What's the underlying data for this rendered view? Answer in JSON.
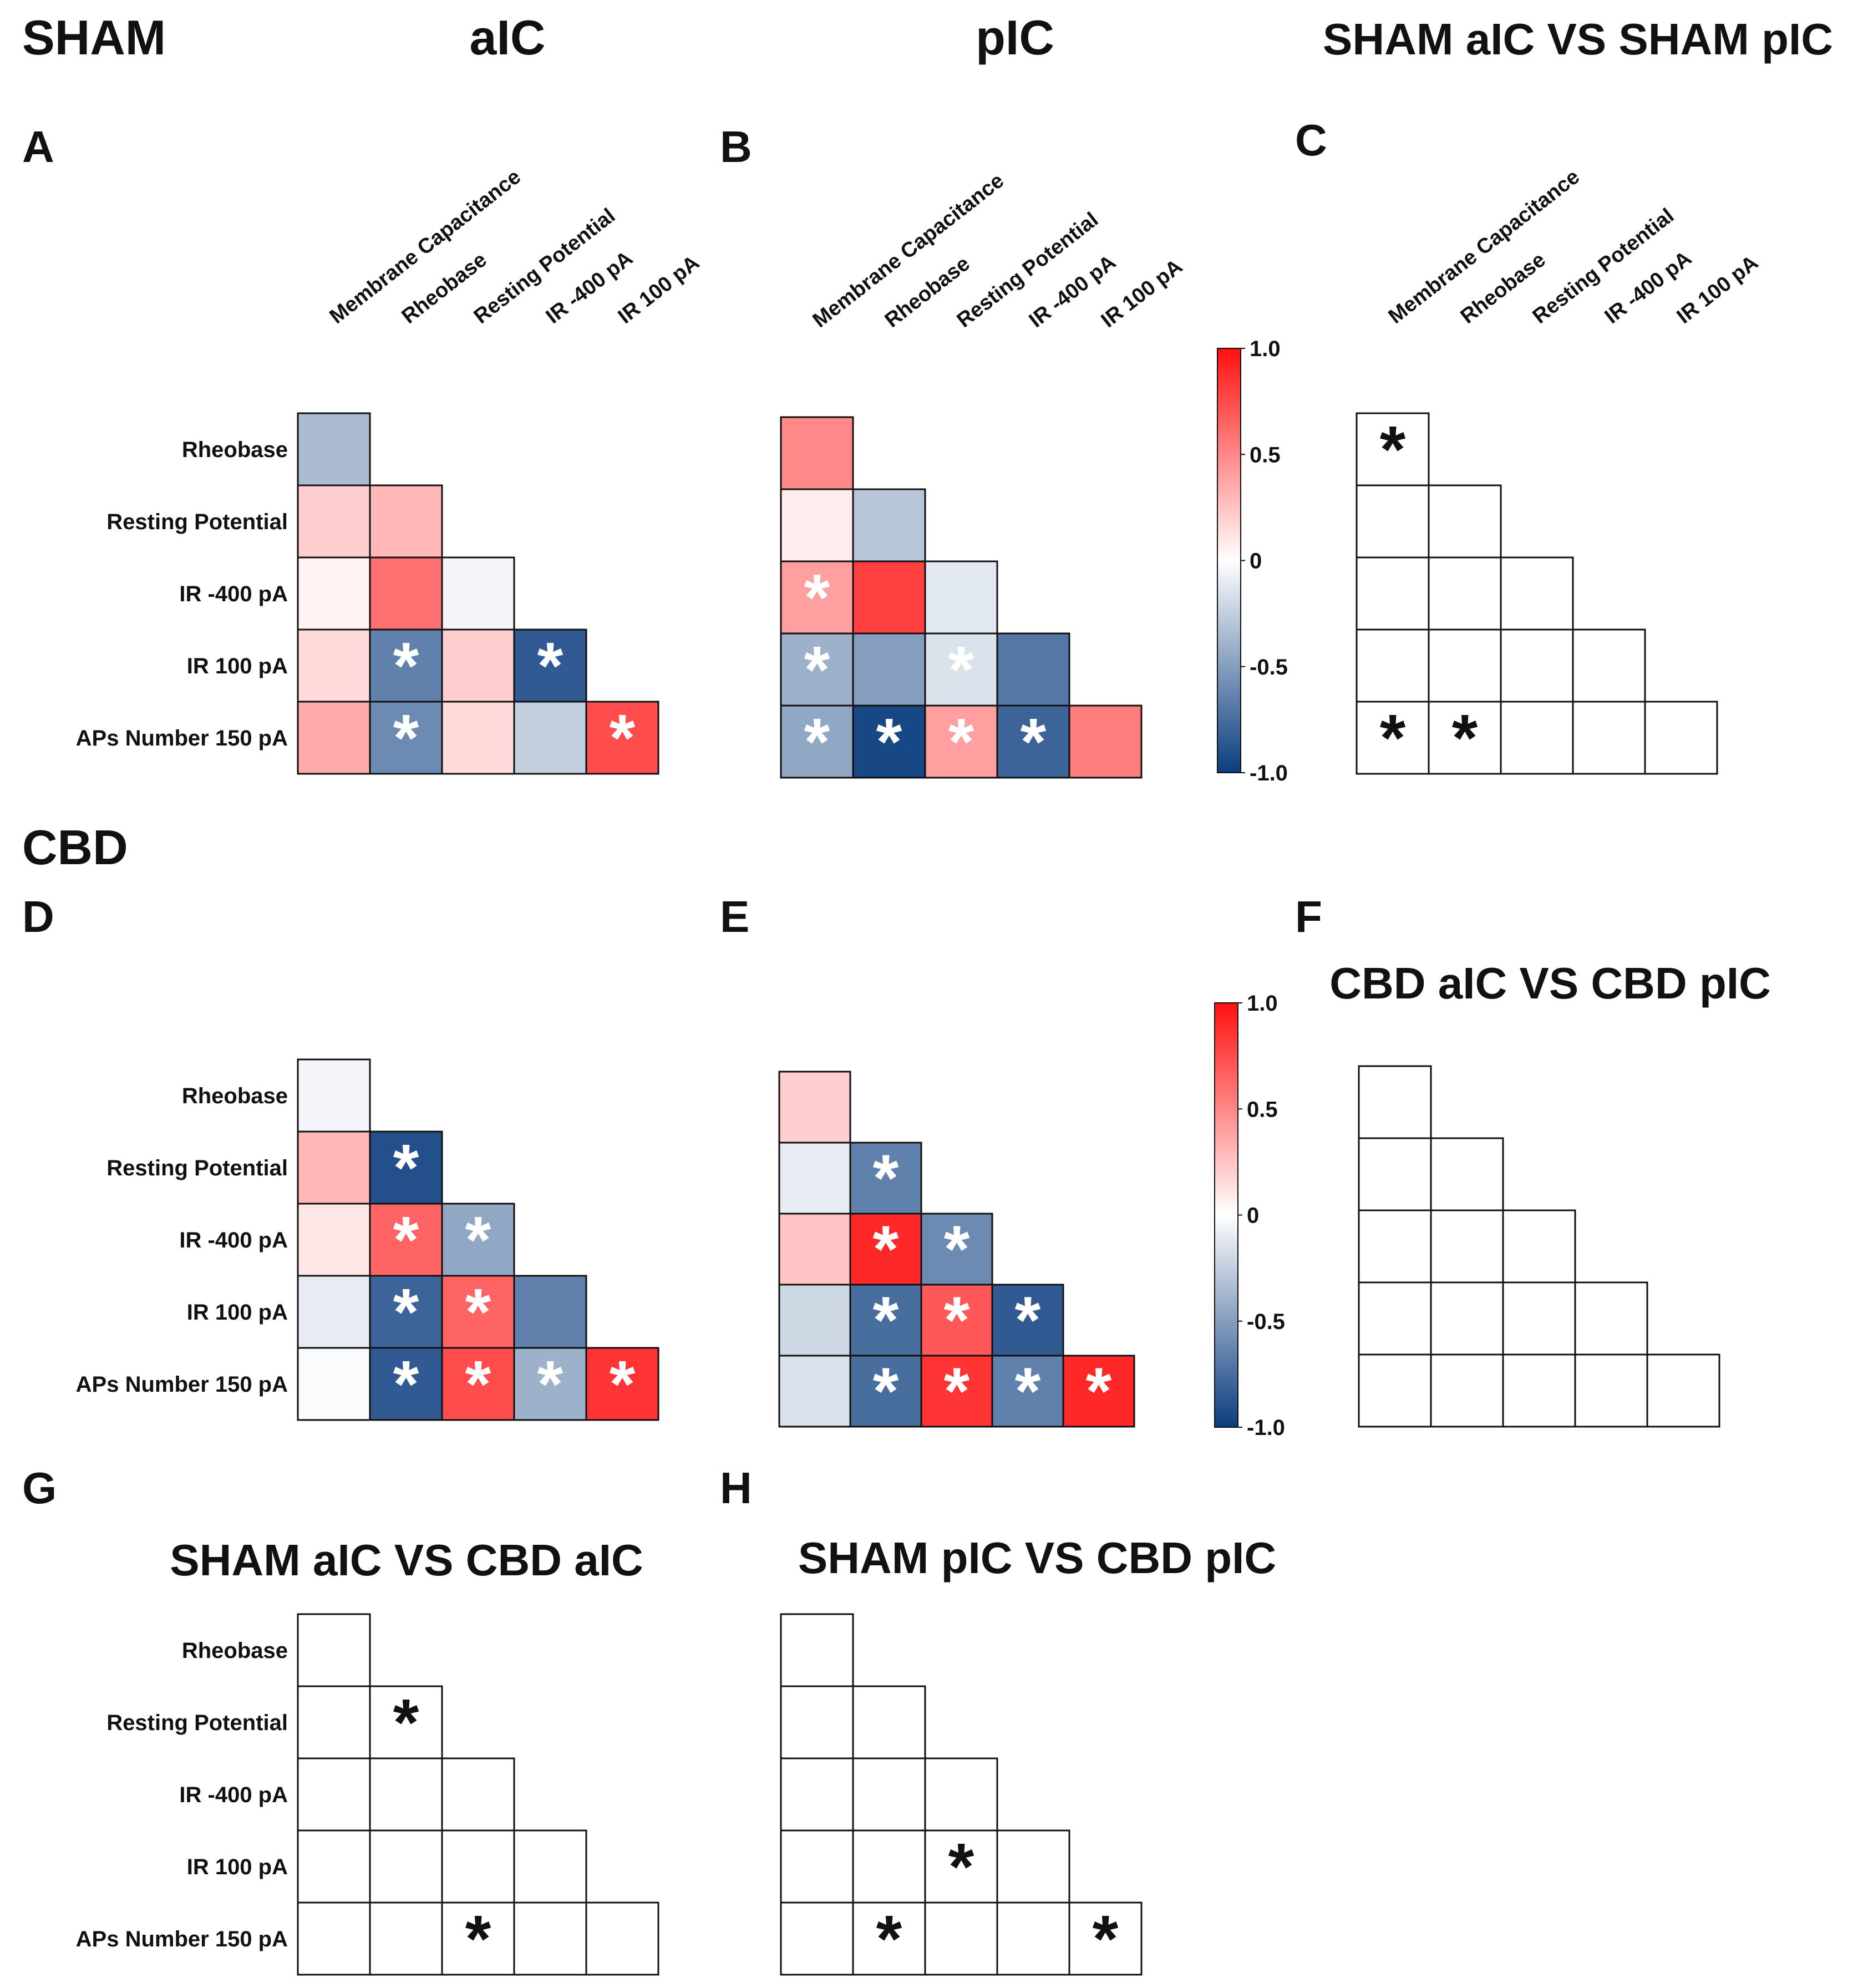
{
  "titles": {
    "sham": "SHAM",
    "aic": "aIC",
    "pic": "pIC",
    "sham_compare": "SHAM aIC VS SHAM pIC",
    "cbd": "CBD",
    "cbd_compare": "CBD aIC VS CBD pIC",
    "g_compare": "SHAM aIC VS CBD aIC",
    "h_compare": "SHAM pIC VS CBD pIC"
  },
  "colors": {
    "negative": "#0b3d7e",
    "zero": "#ffffff",
    "positive": "#ff1010",
    "white_star": "#ffffff",
    "black_star": "#111111"
  },
  "chart_data": [
    {
      "type": "heatmap",
      "panel": "A",
      "x_labels": [
        "Membrane Capacitance",
        "Rheobase",
        "Resting Potential",
        "IR -400 pA",
        "IR 100 pA"
      ],
      "y_labels": [
        "Rheobase",
        "Resting Potential",
        "IR -400 pA",
        "IR 100 pA",
        "APs Number 150 pA"
      ],
      "values": [
        [
          -0.35
        ],
        [
          0.2,
          0.3
        ],
        [
          0.05,
          0.6,
          -0.05
        ],
        [
          0.15,
          -0.65,
          0.2,
          -0.85
        ],
        [
          0.35,
          -0.6,
          0.15,
          -0.25,
          0.75
        ]
      ],
      "significant": [
        [
          false
        ],
        [
          false,
          false
        ],
        [
          false,
          false,
          false
        ],
        [
          false,
          true,
          false,
          true
        ],
        [
          false,
          true,
          false,
          false,
          true
        ]
      ]
    },
    {
      "type": "heatmap",
      "panel": "B",
      "x_labels": [
        "Membrane Capacitance",
        "Rheobase",
        "Resting Potential",
        "IR -400 pA",
        "IR 100 pA"
      ],
      "y_labels": [
        "Rheobase",
        "Resting Potential",
        "IR -400 pA",
        "IR 100 pA",
        "APs Number 150 pA"
      ],
      "values": [
        [
          0.5
        ],
        [
          0.08,
          -0.3
        ],
        [
          0.4,
          0.8,
          -0.12
        ],
        [
          -0.4,
          -0.5,
          -0.15,
          -0.7
        ],
        [
          -0.45,
          -0.95,
          0.4,
          -0.8,
          0.55
        ]
      ],
      "significant": [
        [
          false
        ],
        [
          false,
          false
        ],
        [
          true,
          false,
          false
        ],
        [
          true,
          false,
          true,
          false
        ],
        [
          true,
          true,
          true,
          true,
          false
        ]
      ]
    },
    {
      "type": "heatmap",
      "panel": "C",
      "x_labels": [
        "Membrane Capacitance",
        "Rheobase",
        "Resting Potential",
        "IR -400 pA",
        "IR 100 pA"
      ],
      "values": [],
      "significant": [
        [
          true
        ],
        [
          false,
          false
        ],
        [
          false,
          false,
          false
        ],
        [
          false,
          false,
          false,
          false
        ],
        [
          true,
          true,
          false,
          false,
          false
        ]
      ]
    },
    {
      "type": "heatmap",
      "panel": "D",
      "y_labels": [
        "Rheobase",
        "Resting Potential",
        "IR -400 pA",
        "IR 100 pA",
        "APs Number 150 pA"
      ],
      "values": [
        [
          -0.05
        ],
        [
          0.3,
          -0.9
        ],
        [
          0.1,
          0.65,
          -0.45
        ],
        [
          -0.1,
          -0.8,
          0.65,
          -0.65
        ],
        [
          -0.02,
          -0.85,
          0.75,
          -0.4,
          0.85
        ]
      ],
      "significant": [
        [
          false
        ],
        [
          false,
          true
        ],
        [
          false,
          true,
          true
        ],
        [
          false,
          true,
          true,
          false
        ],
        [
          false,
          true,
          true,
          true,
          true
        ]
      ]
    },
    {
      "type": "heatmap",
      "panel": "E",
      "values": [
        [
          0.2
        ],
        [
          -0.1,
          -0.65
        ],
        [
          0.25,
          0.9,
          -0.6
        ],
        [
          -0.2,
          -0.75,
          0.7,
          -0.85
        ],
        [
          -0.15,
          -0.75,
          0.85,
          -0.65,
          0.9
        ]
      ],
      "significant": [
        [
          false
        ],
        [
          false,
          true
        ],
        [
          false,
          true,
          true
        ],
        [
          false,
          true,
          true,
          true
        ],
        [
          false,
          true,
          true,
          true,
          true
        ]
      ]
    },
    {
      "type": "heatmap",
      "panel": "F",
      "values": [],
      "significant": [
        [
          false
        ],
        [
          false,
          false
        ],
        [
          false,
          false,
          false
        ],
        [
          false,
          false,
          false,
          false
        ],
        [
          false,
          false,
          false,
          false,
          false
        ]
      ]
    },
    {
      "type": "heatmap",
      "panel": "G",
      "y_labels": [
        "Rheobase",
        "Resting Potential",
        "IR -400 pA",
        "IR 100 pA",
        "APs Number 150 pA"
      ],
      "values": [],
      "significant": [
        [
          false
        ],
        [
          false,
          true
        ],
        [
          false,
          false,
          false
        ],
        [
          false,
          false,
          false,
          false
        ],
        [
          false,
          false,
          true,
          false,
          false
        ]
      ]
    },
    {
      "type": "heatmap",
      "panel": "H",
      "values": [],
      "significant": [
        [
          false
        ],
        [
          false,
          false
        ],
        [
          false,
          false,
          false
        ],
        [
          false,
          false,
          true,
          false
        ],
        [
          false,
          true,
          false,
          false,
          true
        ]
      ]
    }
  ],
  "colorbars": [
    {
      "ticks": [
        "1.0",
        "0.5",
        "0",
        "-0.5",
        "-1.0"
      ],
      "range": [
        -1,
        1
      ]
    },
    {
      "ticks": [
        "1.0",
        "0.5",
        "0",
        "-0.5",
        "-1.0"
      ],
      "range": [
        -1,
        1
      ]
    }
  ]
}
